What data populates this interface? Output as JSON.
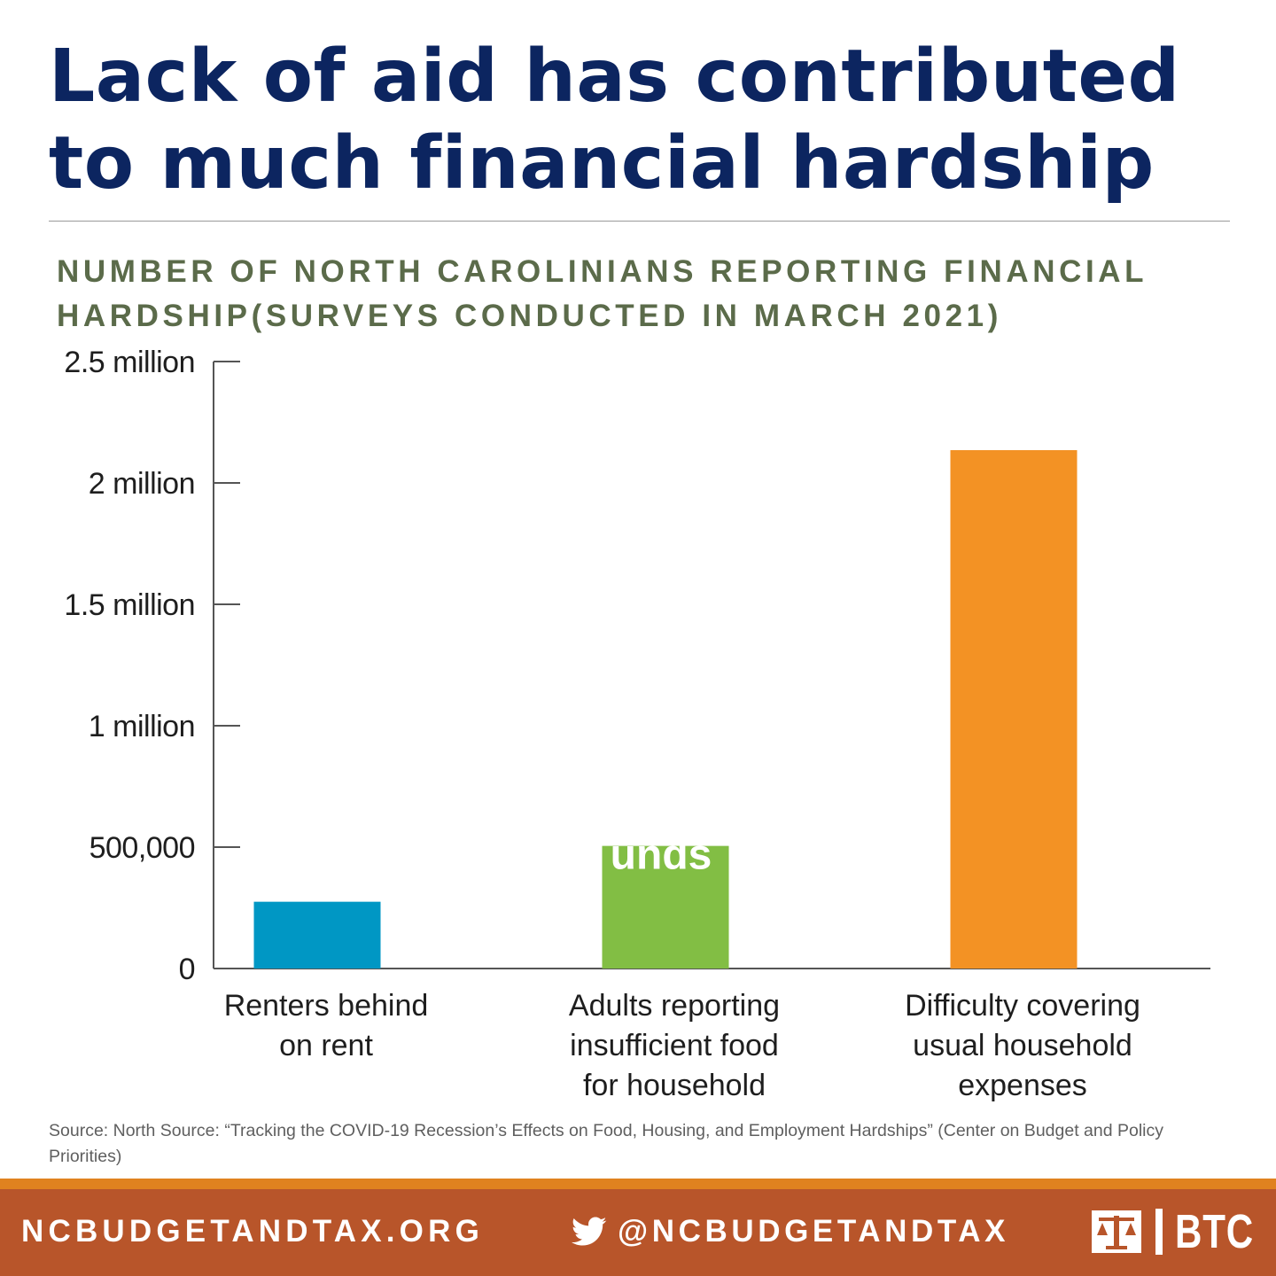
{
  "headline": {
    "line1": "Lack of aid has contributed",
    "line2": "to much financial hardship"
  },
  "subtitle": {
    "line1": "NUMBER OF NORTH CAROLINIANS REPORTING FINANCIAL",
    "line2": "HARDSHIP(SURVEYS CONDUCTED IN MARCH 2021)"
  },
  "colors": {
    "headline": "#0c2560",
    "renters_bar": "#0097c4",
    "food_bar": "#82be44",
    "expenses_bar": "#f39224",
    "footer": "#b8552a",
    "footer_stripe": "#e0821f"
  },
  "chart_data": {
    "type": "bar",
    "categories": [
      [
        "Renters behind",
        "on rent"
      ],
      [
        "Adults reporting",
        "insufficient food",
        "for household"
      ],
      [
        "Difficulty covering",
        "usual household",
        "expenses"
      ]
    ],
    "values": [
      275000,
      505000,
      2135000
    ],
    "bar_colors": [
      "#0097c4",
      "#82be44",
      "#f39224"
    ],
    "ylim": [
      0,
      2500000
    ],
    "yticks": [
      {
        "value": 0,
        "label": "0"
      },
      {
        "value": 500000,
        "label": "500,000"
      },
      {
        "value": 1000000,
        "label": "1 million"
      },
      {
        "value": 1500000,
        "label": "1.5 million"
      },
      {
        "value": 2000000,
        "label": "2 million"
      },
      {
        "value": 2500000,
        "label": "2.5 million"
      }
    ],
    "overlay_text": "unds",
    "grid": false
  },
  "source": "Source: North Source: “Tracking the COVID-19 Recession’s Effects on Food, Housing, and Employment Hardships” (Center on Budget and Policy Priorities)",
  "footer": {
    "website": "NCBUDGETANDTAX.ORG",
    "twitter_icon": "twitter-bird-icon",
    "twitter_handle": "@NCBUDGETANDTAX",
    "logo_text": "BTC"
  }
}
